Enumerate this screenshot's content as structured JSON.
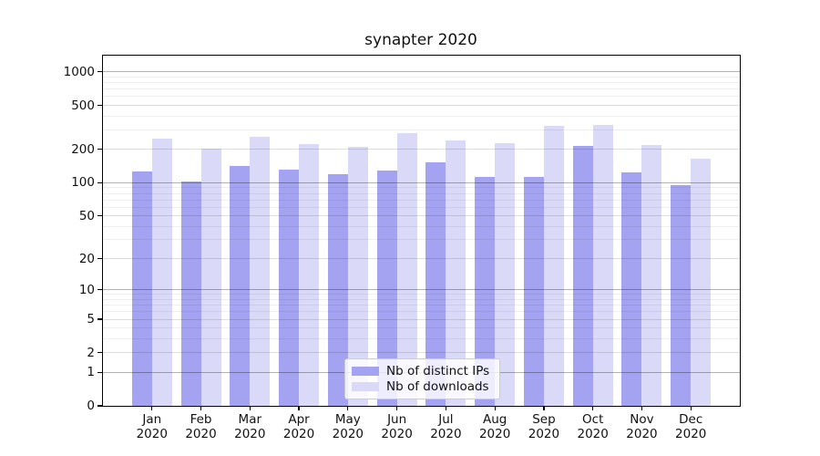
{
  "chart_data": {
    "type": "bar",
    "title": "synapter 2020",
    "categories": [
      "Jan",
      "Feb",
      "Mar",
      "Apr",
      "May",
      "Jun",
      "Jul",
      "Aug",
      "Sep",
      "Oct",
      "Nov",
      "Dec"
    ],
    "category_year": "2020",
    "series": [
      {
        "name": "Nb of distinct IPs",
        "color": "#a3a3f2",
        "values": [
          126,
          103,
          142,
          131,
          120,
          129,
          153,
          113,
          112,
          217,
          125,
          95
        ]
      },
      {
        "name": "Nb of downloads",
        "color": "#dadaf8",
        "values": [
          249,
          203,
          259,
          222,
          211,
          283,
          243,
          228,
          326,
          336,
          221,
          164
        ]
      }
    ],
    "yscale": "log1p",
    "ylim": [
      0,
      1400
    ],
    "yticks": [
      0,
      1,
      2,
      5,
      10,
      20,
      50,
      100,
      200,
      500,
      1000
    ],
    "ytick_major": [
      1,
      10,
      100,
      1000
    ],
    "grid": true,
    "legend_position": "lower center",
    "xlabel": "",
    "ylabel": ""
  }
}
